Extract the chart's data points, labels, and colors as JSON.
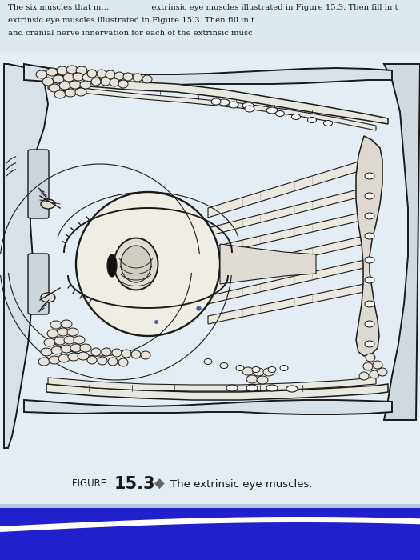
{
  "page_bg": "#dde8ef",
  "draw_bg": "#e8f0f5",
  "line_color": "#1a1a1a",
  "line_color_light": "#555555",
  "fill_white": "#f5f5f5",
  "fill_light": "#e8e8e0",
  "caption_text": "FIGURE ",
  "caption_number": "15.3",
  "caption_rest": " The extrinsic eye muscles.",
  "header1": "The six muscles that m           extrinsic eye muscles illustrated in Figure 15.3. Then fill in t",
  "header2": "extrinsic eye muscles illustrated in Figure 15.3. Then fill in t",
  "header3": "and cranial nerve innervation for each of the extrinsic musc",
  "blue_bar": "#2222cc",
  "blue_bar2": "#1111aa"
}
